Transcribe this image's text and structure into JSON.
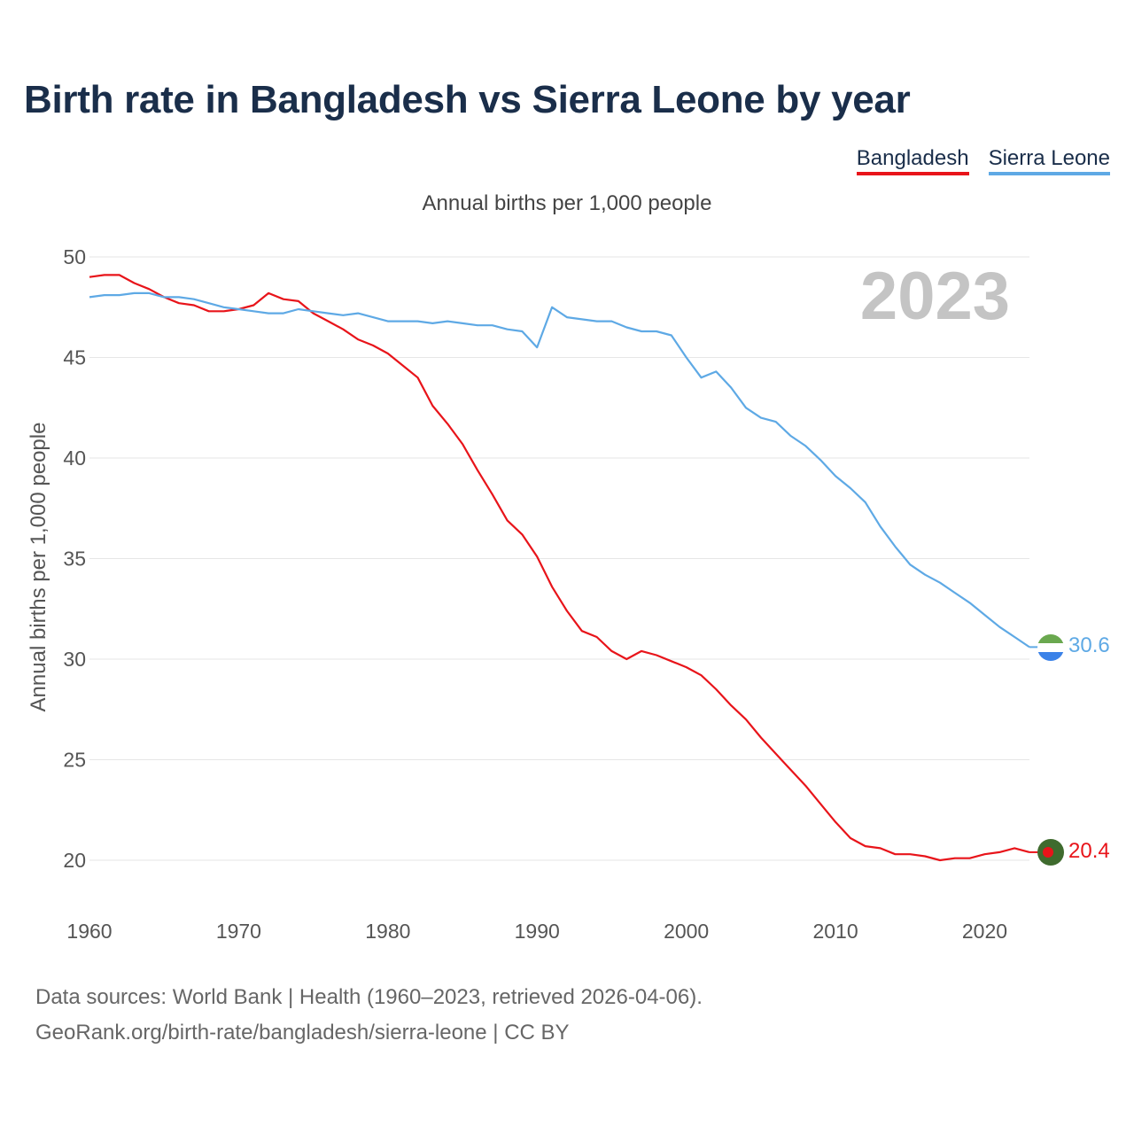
{
  "header": {
    "title": "Birth rate in Bangladesh vs Sierra Leone by year",
    "legend": [
      "Bangladesh",
      "Sierra Leone"
    ]
  },
  "footer": {
    "line1": "Data sources: World Bank | Health (1960–2023, retrieved 2026-04-06).",
    "line2": "GeoRank.org/birth-rate/bangladesh/sierra-leone | CC BY"
  },
  "chart_data": {
    "type": "line",
    "title": "Birth rate in Bangladesh vs Sierra Leone by year",
    "subtitle": "Annual births per 1,000 people",
    "ylabel": "Annual births per 1,000 people",
    "xlabel": "",
    "year_label": "2023",
    "xlim": [
      1960,
      2023
    ],
    "ylim": [
      20,
      50
    ],
    "xticks": [
      1960,
      1970,
      1980,
      1990,
      2000,
      2010,
      2020
    ],
    "yticks": [
      20,
      25,
      30,
      35,
      40,
      45,
      50
    ],
    "grid": true,
    "legend_position": "top-right",
    "x": [
      1960,
      1961,
      1962,
      1963,
      1964,
      1965,
      1966,
      1967,
      1968,
      1969,
      1970,
      1971,
      1972,
      1973,
      1974,
      1975,
      1976,
      1977,
      1978,
      1979,
      1980,
      1981,
      1982,
      1983,
      1984,
      1985,
      1986,
      1987,
      1988,
      1989,
      1990,
      1991,
      1992,
      1993,
      1994,
      1995,
      1996,
      1997,
      1998,
      1999,
      2000,
      2001,
      2002,
      2003,
      2004,
      2005,
      2006,
      2007,
      2008,
      2009,
      2010,
      2011,
      2012,
      2013,
      2014,
      2015,
      2016,
      2017,
      2018,
      2019,
      2020,
      2021,
      2022,
      2023
    ],
    "series": [
      {
        "name": "Bangladesh",
        "color": "#e8141a",
        "end_label": "20.4",
        "values": [
          49.0,
          49.1,
          49.1,
          48.7,
          48.4,
          48.0,
          47.7,
          47.6,
          47.3,
          47.3,
          47.4,
          47.6,
          48.2,
          47.9,
          47.8,
          47.2,
          46.8,
          46.4,
          45.9,
          45.6,
          45.2,
          44.6,
          44.0,
          42.6,
          41.7,
          40.7,
          39.4,
          38.2,
          36.9,
          36.2,
          35.1,
          33.6,
          32.4,
          31.4,
          31.1,
          30.4,
          30.0,
          30.4,
          30.2,
          29.9,
          29.6,
          29.2,
          28.5,
          27.7,
          27.0,
          26.1,
          25.3,
          24.5,
          23.7,
          22.8,
          21.9,
          21.1,
          20.7,
          20.6,
          20.3,
          20.3,
          20.2,
          20.0,
          20.1,
          20.1,
          20.3,
          20.4,
          20.6,
          20.4
        ]
      },
      {
        "name": "Sierra Leone",
        "color": "#5ea9e5",
        "end_label": "30.6",
        "values": [
          48.0,
          48.1,
          48.1,
          48.2,
          48.2,
          48.0,
          48.0,
          47.9,
          47.7,
          47.5,
          47.4,
          47.3,
          47.2,
          47.2,
          47.4,
          47.3,
          47.2,
          47.1,
          47.2,
          47.0,
          46.8,
          46.8,
          46.8,
          46.7,
          46.8,
          46.7,
          46.6,
          46.6,
          46.4,
          46.3,
          45.5,
          47.5,
          47.0,
          46.9,
          46.8,
          46.8,
          46.5,
          46.3,
          46.3,
          46.1,
          45.0,
          44.0,
          44.3,
          43.5,
          42.5,
          42.0,
          41.8,
          41.1,
          40.6,
          39.9,
          39.1,
          38.5,
          37.8,
          36.6,
          35.6,
          34.7,
          34.2,
          33.8,
          33.3,
          32.8,
          32.2,
          31.6,
          31.1,
          30.6
        ]
      }
    ]
  }
}
